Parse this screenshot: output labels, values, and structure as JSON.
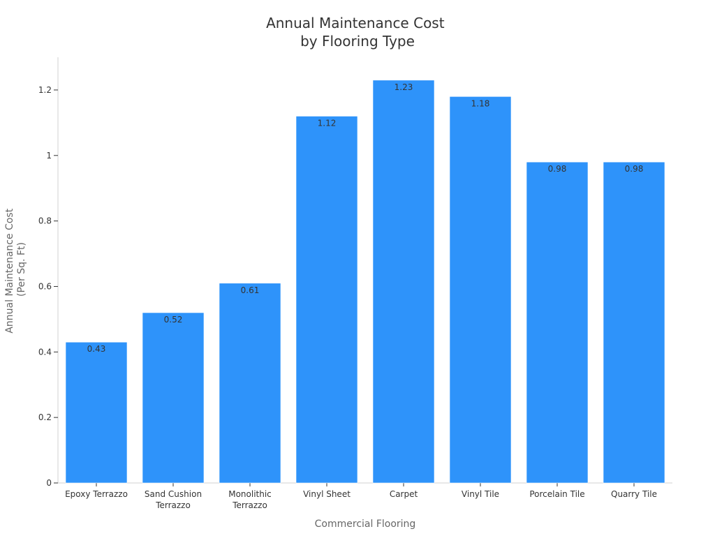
{
  "chart_data": {
    "type": "bar",
    "title": [
      "Annual Maintenance Cost",
      "by Flooring Type"
    ],
    "xlabel": "Commercial Flooring",
    "ylabel": [
      "Annual Maintenance Cost",
      "(Per Sq. Ft)"
    ],
    "categories": [
      [
        "Epoxy Terrazzo"
      ],
      [
        "Sand Cushion",
        "Terrazzo"
      ],
      [
        "Monolithic",
        "Terrazzo"
      ],
      [
        "Vinyl Sheet"
      ],
      [
        "Carpet"
      ],
      [
        "Vinyl Tile"
      ],
      [
        "Porcelain Tile"
      ],
      [
        "Quarry Tile"
      ]
    ],
    "values": [
      0.43,
      0.52,
      0.61,
      1.12,
      1.23,
      1.18,
      0.98,
      0.98
    ],
    "value_labels": [
      "0.43",
      "0.52",
      "0.61",
      "1.12",
      "1.23",
      "1.18",
      "0.98",
      "0.98"
    ],
    "yticks": [
      0,
      0.2,
      0.4,
      0.6,
      0.8,
      1,
      1.2
    ],
    "ytick_labels": [
      "0",
      "0.2",
      "0.4",
      "0.6",
      "0.8",
      "1",
      "1.2"
    ],
    "ylim": [
      0,
      1.3
    ],
    "grid": false,
    "legend": "none",
    "bar_color": "#2e93fa"
  }
}
